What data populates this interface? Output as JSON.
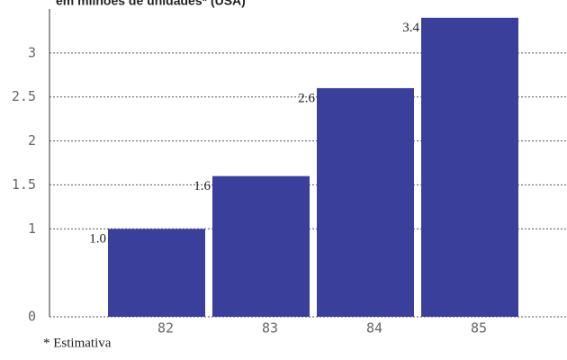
{
  "chart_data": {
    "type": "bar",
    "title": "em milhões de unidades* (USA)",
    "categories": [
      "82",
      "83",
      "84",
      "85"
    ],
    "values": [
      1.0,
      1.6,
      2.6,
      3.4
    ],
    "value_labels": [
      "1.0",
      "1.6",
      "2.6",
      "3.4"
    ],
    "color": "#3b3f9c",
    "ylim": [
      0,
      3.5
    ],
    "yticks": [
      0,
      1,
      1.5,
      2,
      2.5,
      3
    ],
    "grid": true,
    "footnote": "* Estimativa"
  }
}
